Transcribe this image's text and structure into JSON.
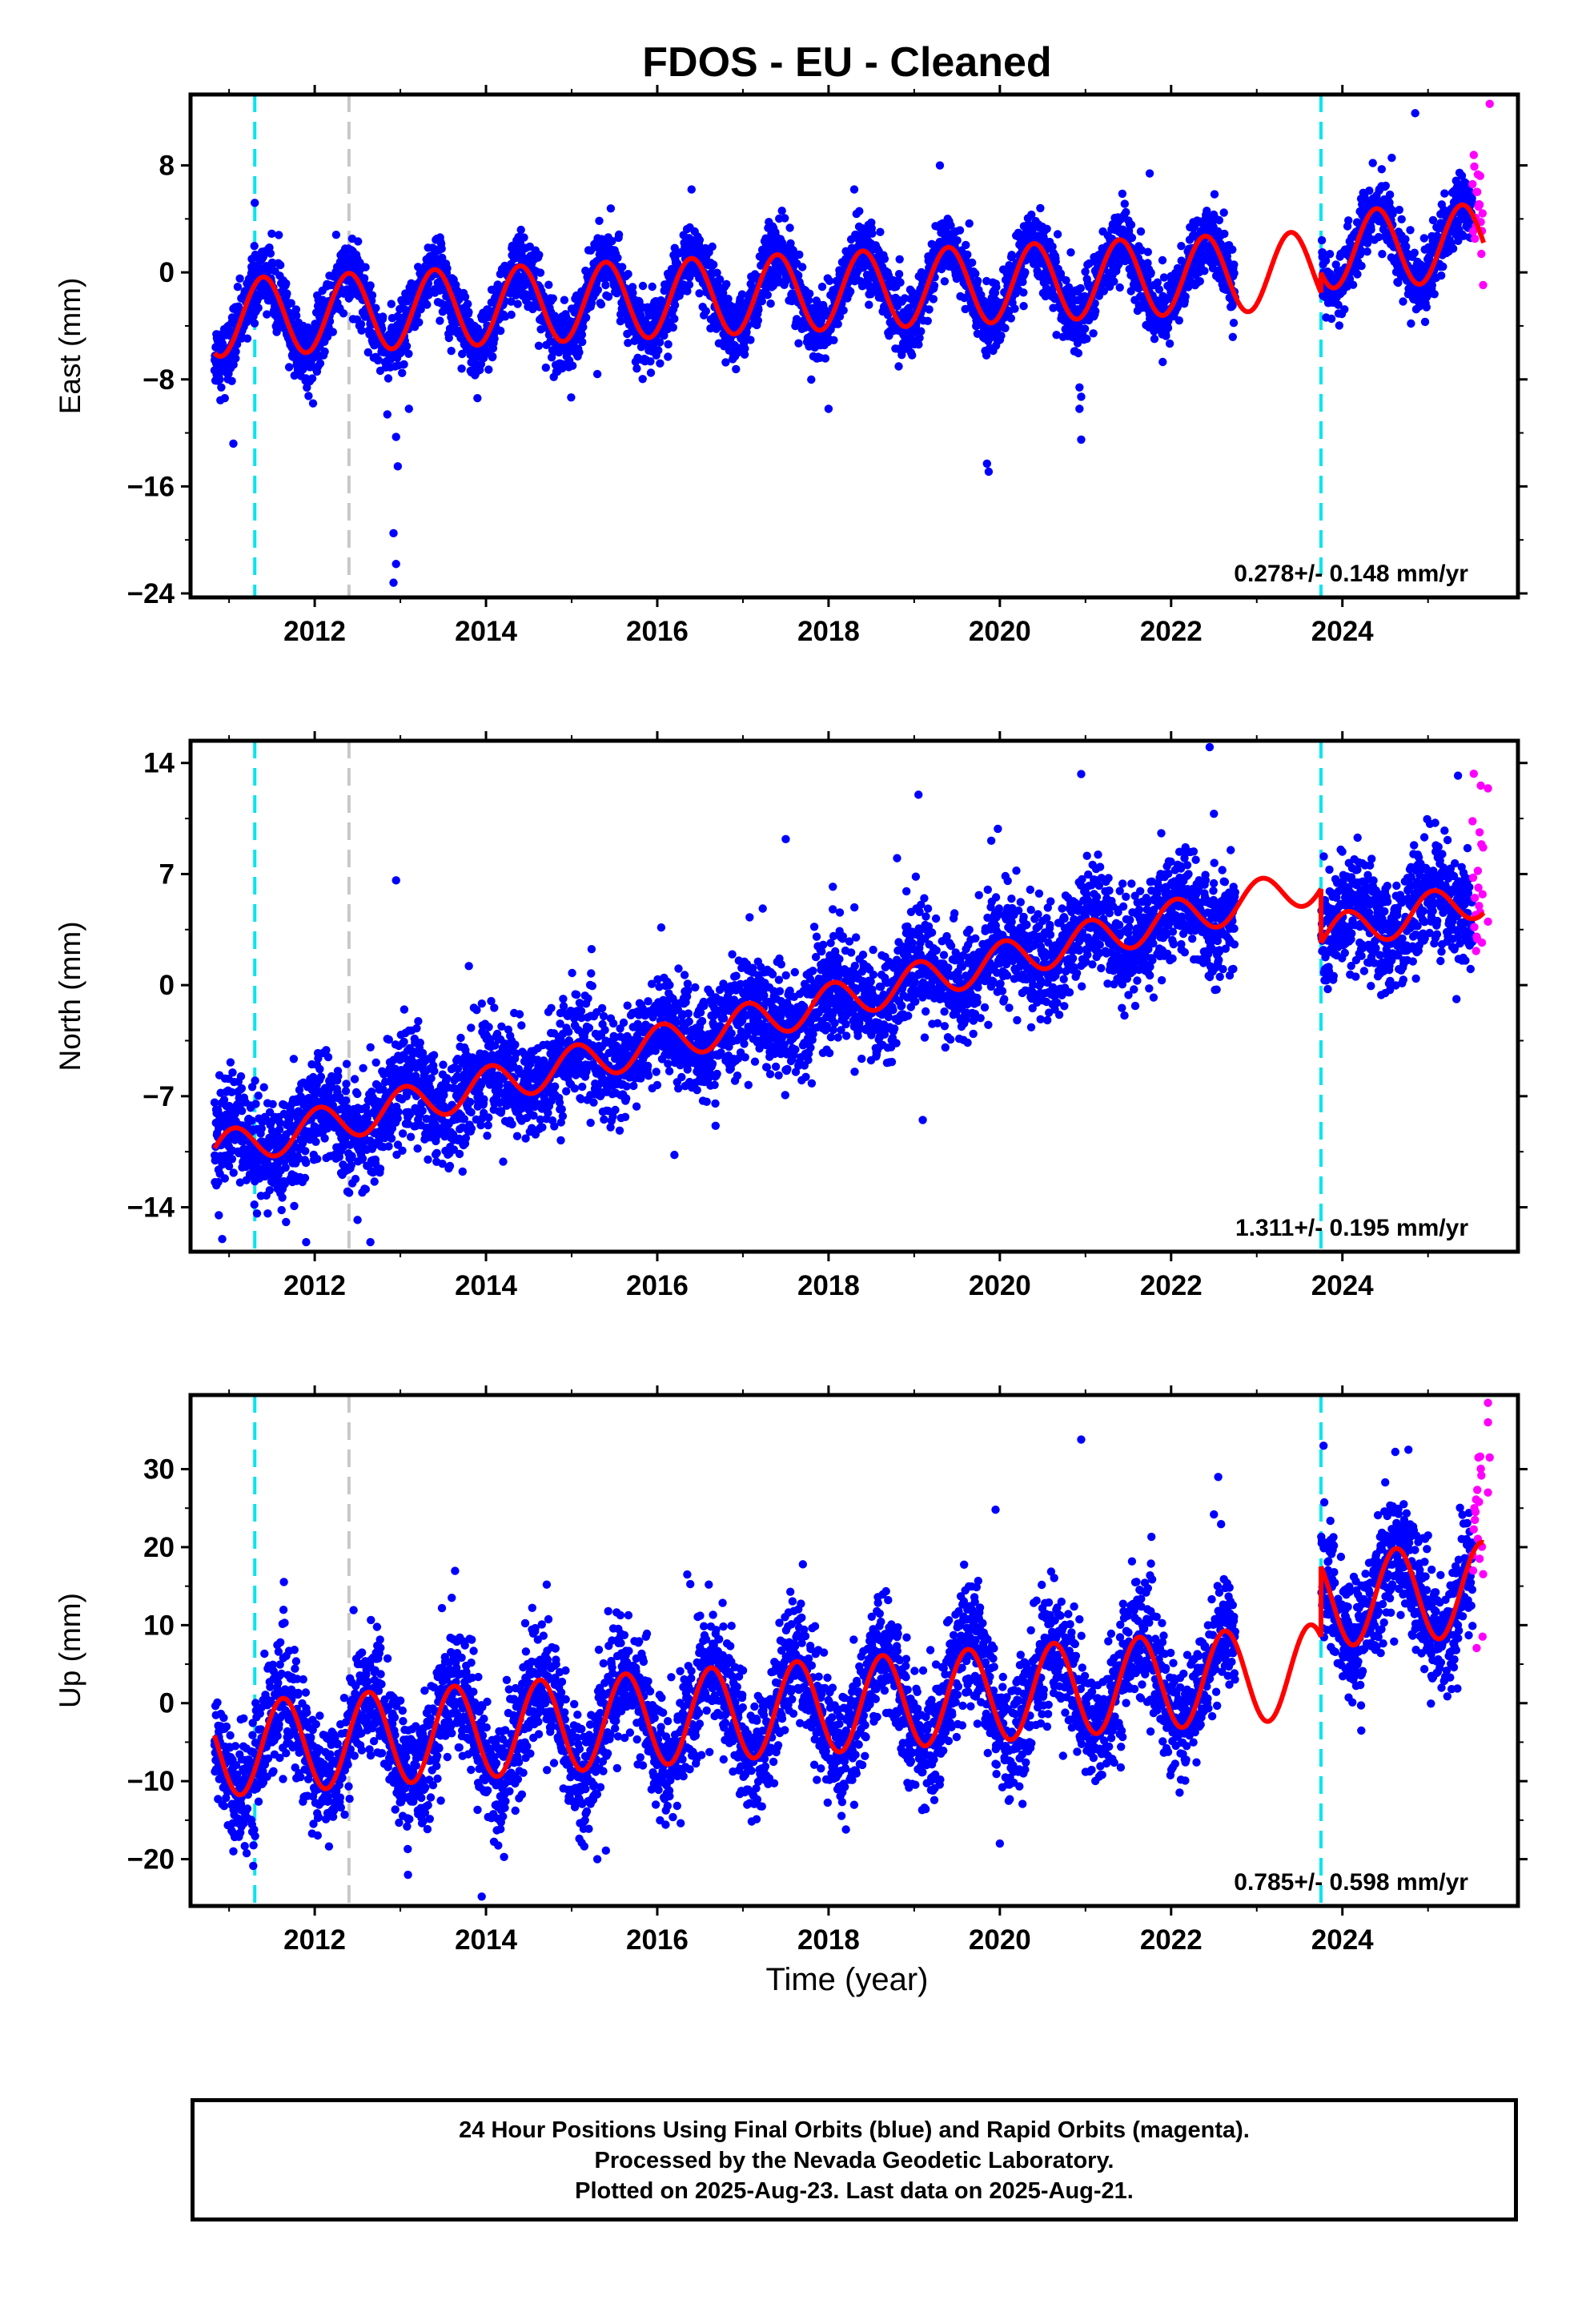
{
  "title": "FDOS  - EU - Cleaned",
  "xlabel": "Time (year)",
  "footer": {
    "line1": "24 Hour Positions Using Final Orbits (blue) and Rapid Orbits (magenta).",
    "line2": "Processed by the Nevada Geodetic Laboratory.",
    "line3": "Plotted on 2025-Aug-23. Last data on 2025-Aug-21."
  },
  "colors": {
    "final_orbits": "#0000ff",
    "rapid_orbits": "#ff00ff",
    "model": "#ff0000",
    "equipment_change": "#00e5ee",
    "other_event": "#c8c8c8"
  },
  "chart_data": [
    {
      "type": "scatter",
      "component": "east",
      "ylabel": "East (mm)",
      "xlim": [
        2010.55,
        2026.05
      ],
      "ylim": [
        -24.3,
        13.3
      ],
      "yticks": [
        8,
        0,
        -8,
        -16,
        -24
      ],
      "xticks": [
        2012,
        2014,
        2016,
        2018,
        2020,
        2022,
        2024
      ],
      "rate": "0.278+/- 0.148 mm/yr",
      "event_lines": [
        {
          "x": 2011.3,
          "kind": "equipment"
        },
        {
          "x": 2012.4,
          "kind": "other"
        },
        {
          "x": 2023.75,
          "kind": "equipment"
        }
      ],
      "model": {
        "t0": 2010.83,
        "offset": -3.4,
        "slope": 0.278,
        "amplitude": 2.9,
        "phase_year": 2011.4,
        "segments": [
          {
            "from": 2010.83,
            "to": 2023.75,
            "jump": 0
          },
          {
            "from": 2023.75,
            "to": 2025.65,
            "jump": 1.5
          }
        ]
      },
      "scatter": {
        "final_start": 2010.83,
        "final_end": 2025.52,
        "rapid_start": 2025.52,
        "rapid_end": 2025.65,
        "sigma": 1.25,
        "gaps": [
          [
            2022.75,
            2023.75
          ]
        ],
        "outliers": [
          [
            2011.05,
            -12.8
          ],
          [
            2010.95,
            -9.4
          ],
          [
            2012.95,
            -12.3
          ],
          [
            2012.97,
            -14.5
          ],
          [
            2012.92,
            -19.5
          ],
          [
            2012.95,
            -21.8
          ],
          [
            2012.92,
            -23.2
          ],
          [
            2013.1,
            -10.2
          ],
          [
            2013.9,
            -9.4
          ],
          [
            2015.3,
            -7.6
          ],
          [
            2017.65,
            -5.3
          ],
          [
            2018.0,
            -10.2
          ],
          [
            2019.85,
            -14.3
          ],
          [
            2019.87,
            -14.9
          ],
          [
            2020.93,
            -8.6
          ],
          [
            2020.95,
            -9.3
          ],
          [
            2020.93,
            -10.2
          ],
          [
            2020.95,
            -12.5
          ],
          [
            2019.3,
            8.0
          ],
          [
            2016.4,
            6.2
          ],
          [
            2018.3,
            6.2
          ],
          [
            2021.75,
            7.4
          ],
          [
            2025.72,
            12.6
          ],
          [
            2011.3,
            5.2
          ],
          [
            2024.85,
            11.9
          ]
        ]
      }
    },
    {
      "type": "scatter",
      "component": "north",
      "ylabel": "North (mm)",
      "xlim": [
        2010.55,
        2026.05
      ],
      "ylim": [
        -16.8,
        15.4
      ],
      "yticks": [
        14,
        7,
        0,
        -7,
        -14
      ],
      "xticks": [
        2012,
        2014,
        2016,
        2018,
        2020,
        2022,
        2024
      ],
      "rate": "1.311+/- 0.195 mm/yr",
      "event_lines": [
        {
          "x": 2011.3,
          "kind": "equipment"
        },
        {
          "x": 2012.4,
          "kind": "other"
        },
        {
          "x": 2023.75,
          "kind": "equipment"
        }
      ],
      "model": {
        "t0": 2010.83,
        "offset": -10.5,
        "slope": 1.311,
        "amplitude": 1.2,
        "phase_year": 2011.05,
        "segments": [
          {
            "from": 2010.83,
            "to": 2023.75,
            "jump": 0
          },
          {
            "from": 2023.75,
            "to": 2025.65,
            "jump": -3.4
          }
        ]
      },
      "scatter": {
        "final_start": 2010.83,
        "final_end": 2025.52,
        "rapid_start": 2025.52,
        "rapid_end": 2025.65,
        "sigma": 1.7,
        "gaps": [
          [
            2022.75,
            2023.75
          ]
        ],
        "outliers": [
          [
            2012.95,
            6.6
          ],
          [
            2010.88,
            -14.5
          ],
          [
            2010.92,
            -16.0
          ],
          [
            2011.9,
            -16.2
          ],
          [
            2012.65,
            -16.2
          ],
          [
            2012.5,
            -14.8
          ],
          [
            2013.8,
            1.2
          ],
          [
            2018.05,
            6.2
          ],
          [
            2017.5,
            9.2
          ],
          [
            2019.05,
            12.0
          ],
          [
            2019.9,
            9.1
          ],
          [
            2020.95,
            13.3
          ],
          [
            2022.5,
            10.8
          ],
          [
            2022.45,
            15.0
          ],
          [
            2019.1,
            -8.5
          ],
          [
            2016.2,
            -10.7
          ],
          [
            2018.8,
            8.0
          ],
          [
            2025.35,
            13.2
          ],
          [
            2025.7,
            12.4
          ],
          [
            2025.7,
            4.0
          ],
          [
            2024.5,
            -0.5
          ]
        ]
      }
    },
    {
      "type": "scatter",
      "component": "up",
      "ylabel": "Up (mm)",
      "xlim": [
        2010.55,
        2026.05
      ],
      "ylim": [
        -26,
        39.5
      ],
      "yticks": [
        30,
        20,
        10,
        0,
        -10,
        -20
      ],
      "xticks": [
        2012,
        2014,
        2016,
        2018,
        2020,
        2022,
        2024
      ],
      "rate": "0.785+/- 0.598 mm/yr",
      "event_lines": [
        {
          "x": 2011.3,
          "kind": "equipment"
        },
        {
          "x": 2012.4,
          "kind": "other"
        },
        {
          "x": 2023.75,
          "kind": "equipment"
        }
      ],
      "model": {
        "t0": 2010.83,
        "offset": -6.0,
        "slope": 0.785,
        "amplitude": 6.0,
        "phase_year": 2011.63,
        "segments": [
          {
            "from": 2010.83,
            "to": 2023.75,
            "jump": 0
          },
          {
            "from": 2023.75,
            "to": 2025.65,
            "jump": 9.0
          }
        ]
      },
      "scatter": {
        "final_start": 2010.83,
        "final_end": 2025.52,
        "rapid_start": 2025.52,
        "rapid_end": 2025.65,
        "sigma": 3.9,
        "gaps": [
          [
            2022.75,
            2023.75
          ]
        ],
        "outliers": [
          [
            2013.95,
            -24.8
          ],
          [
            2020.95,
            33.8
          ],
          [
            2023.78,
            33.0
          ],
          [
            2025.7,
            38.5
          ],
          [
            2025.7,
            36.0
          ],
          [
            2025.72,
            31.5
          ],
          [
            2025.7,
            27.0
          ],
          [
            2019.95,
            24.8
          ],
          [
            2022.5,
            24.2
          ],
          [
            2022.55,
            29.0
          ],
          [
            2013.6,
            13.5
          ],
          [
            2015.4,
            -18.9
          ],
          [
            2015.3,
            -20.0
          ],
          [
            2020.0,
            -18.0
          ],
          [
            2016.35,
            16.5
          ],
          [
            2017.7,
            17.8
          ],
          [
            2024.5,
            28.3
          ],
          [
            2025.0,
            21.5
          ],
          [
            2011.05,
            -19.0
          ]
        ]
      }
    }
  ]
}
